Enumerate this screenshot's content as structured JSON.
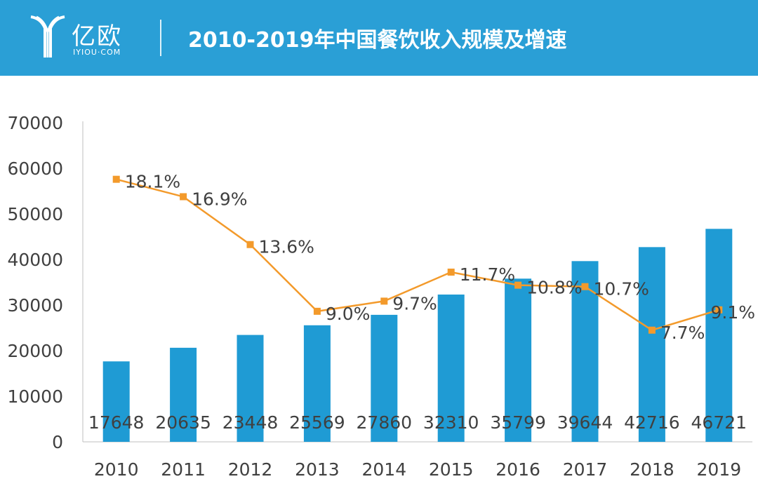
{
  "header": {
    "brand": "亿欧",
    "brand_sub": "IYIOU·COM",
    "title": "2010-2019年中国餐饮收入规模及增速",
    "background_color": "#2a9fd6"
  },
  "chart_data": {
    "type": "bar",
    "categories": [
      "2010",
      "2011",
      "2012",
      "2013",
      "2014",
      "2015",
      "2016",
      "2017",
      "2018",
      "2019"
    ],
    "series": [
      {
        "type": "bar",
        "values": [
          17648,
          20635,
          23448,
          25569,
          27860,
          32310,
          35799,
          39644,
          42716,
          46721
        ],
        "labels": [
          "17648",
          "20635",
          "23448",
          "25569",
          "27860",
          "32310",
          "35799",
          "39644",
          "42716",
          "46721"
        ],
        "color": "#1f9bd4"
      },
      {
        "type": "line",
        "values": [
          18.1,
          16.9,
          13.6,
          9.0,
          9.7,
          11.7,
          10.8,
          10.7,
          7.7,
          9.1
        ],
        "labels": [
          "18.1%",
          "16.9%",
          "13.6%",
          "9.0%",
          "9.7%",
          "11.7%",
          "10.8%",
          "10.7%",
          "7.7%",
          "9.1%"
        ],
        "color": "#f39a2b"
      }
    ],
    "ylim": [
      0,
      70000
    ],
    "yticks": [
      "0",
      "10000",
      "20000",
      "30000",
      "40000",
      "50000",
      "60000",
      "70000"
    ],
    "line_axis_range": [
      0,
      22
    ],
    "grid": false,
    "legend": "none"
  }
}
